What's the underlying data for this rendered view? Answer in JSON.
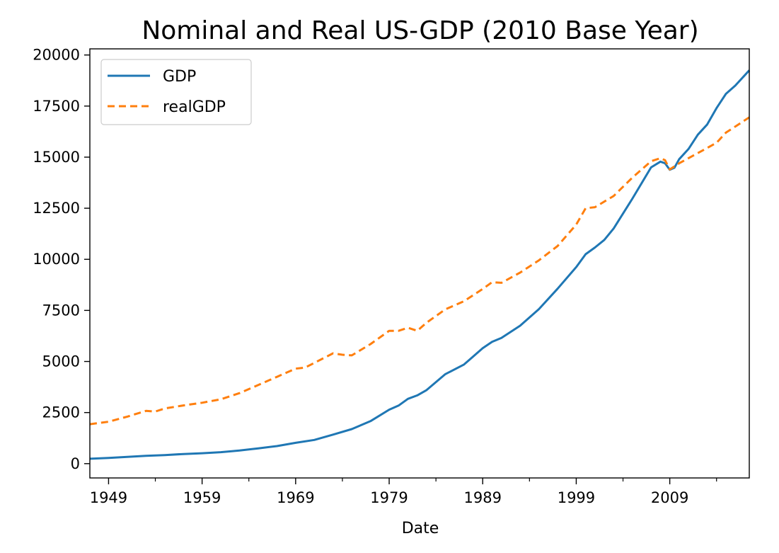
{
  "chart_data": {
    "type": "line",
    "title": "Nominal and Real US-GDP (2010 Base Year)",
    "xlabel": "Date",
    "ylabel": "",
    "x_tick_labels": [
      "1949",
      "1959",
      "1969",
      "1979",
      "1989",
      "1999",
      "2009"
    ],
    "x_tick_years": [
      1949,
      1959,
      1969,
      1979,
      1989,
      1999,
      2009
    ],
    "y_ticks": [
      0,
      2500,
      5000,
      7500,
      10000,
      12500,
      15000,
      17500,
      20000
    ],
    "xlim": [
      1947,
      2017.5
    ],
    "ylim": [
      -700,
      20300
    ],
    "grid": false,
    "legend_position": "top-left",
    "series": [
      {
        "name": "GDP",
        "color": "#1f77b4",
        "style": "solid",
        "x": [
          1947,
          1949,
          1951,
          1953,
          1955,
          1957,
          1959,
          1961,
          1963,
          1965,
          1967,
          1969,
          1971,
          1973,
          1975,
          1977,
          1979,
          1980,
          1981,
          1982,
          1983,
          1985,
          1987,
          1989,
          1990,
          1991,
          1993,
          1995,
          1997,
          1999,
          2000,
          2001,
          2002,
          2003,
          2005,
          2007,
          2008,
          2008.5,
          2009,
          2009.5,
          2010,
          2011,
          2012,
          2013,
          2014,
          2015,
          2016,
          2017.5
        ],
        "values": [
          240,
          280,
          330,
          380,
          420,
          470,
          510,
          560,
          640,
          750,
          860,
          1020,
          1160,
          1420,
          1690,
          2080,
          2640,
          2840,
          3170,
          3340,
          3600,
          4380,
          4850,
          5650,
          5960,
          6150,
          6750,
          7560,
          8560,
          9620,
          10250,
          10580,
          10950,
          11510,
          12970,
          14500,
          14780,
          14700,
          14380,
          14480,
          14900,
          15400,
          16100,
          16600,
          17400,
          18100,
          18500,
          19250
        ]
      },
      {
        "name": "realGDP",
        "color": "#ff7f0e",
        "style": "dashed",
        "x": [
          1947,
          1949,
          1951,
          1953,
          1954,
          1955,
          1957,
          1959,
          1961,
          1963,
          1965,
          1967,
          1969,
          1970,
          1973,
          1974,
          1975,
          1977,
          1979,
          1980,
          1981,
          1982,
          1983,
          1985,
          1987,
          1989,
          1990,
          1991,
          1993,
          1995,
          1997,
          1999,
          2000,
          2001,
          2003,
          2005,
          2007,
          2008,
          2008.5,
          2009,
          2010,
          2012,
          2014,
          2015,
          2016,
          2017.5
        ],
        "values": [
          1930,
          2050,
          2300,
          2580,
          2550,
          2700,
          2850,
          2980,
          3150,
          3450,
          3850,
          4250,
          4650,
          4700,
          5400,
          5330,
          5300,
          5850,
          6500,
          6500,
          6650,
          6500,
          6900,
          7550,
          7950,
          8550,
          8880,
          8850,
          9350,
          9950,
          10650,
          11700,
          12500,
          12550,
          13100,
          14000,
          14800,
          14950,
          14850,
          14400,
          14700,
          15200,
          15700,
          16200,
          16500,
          16950
        ]
      }
    ]
  }
}
